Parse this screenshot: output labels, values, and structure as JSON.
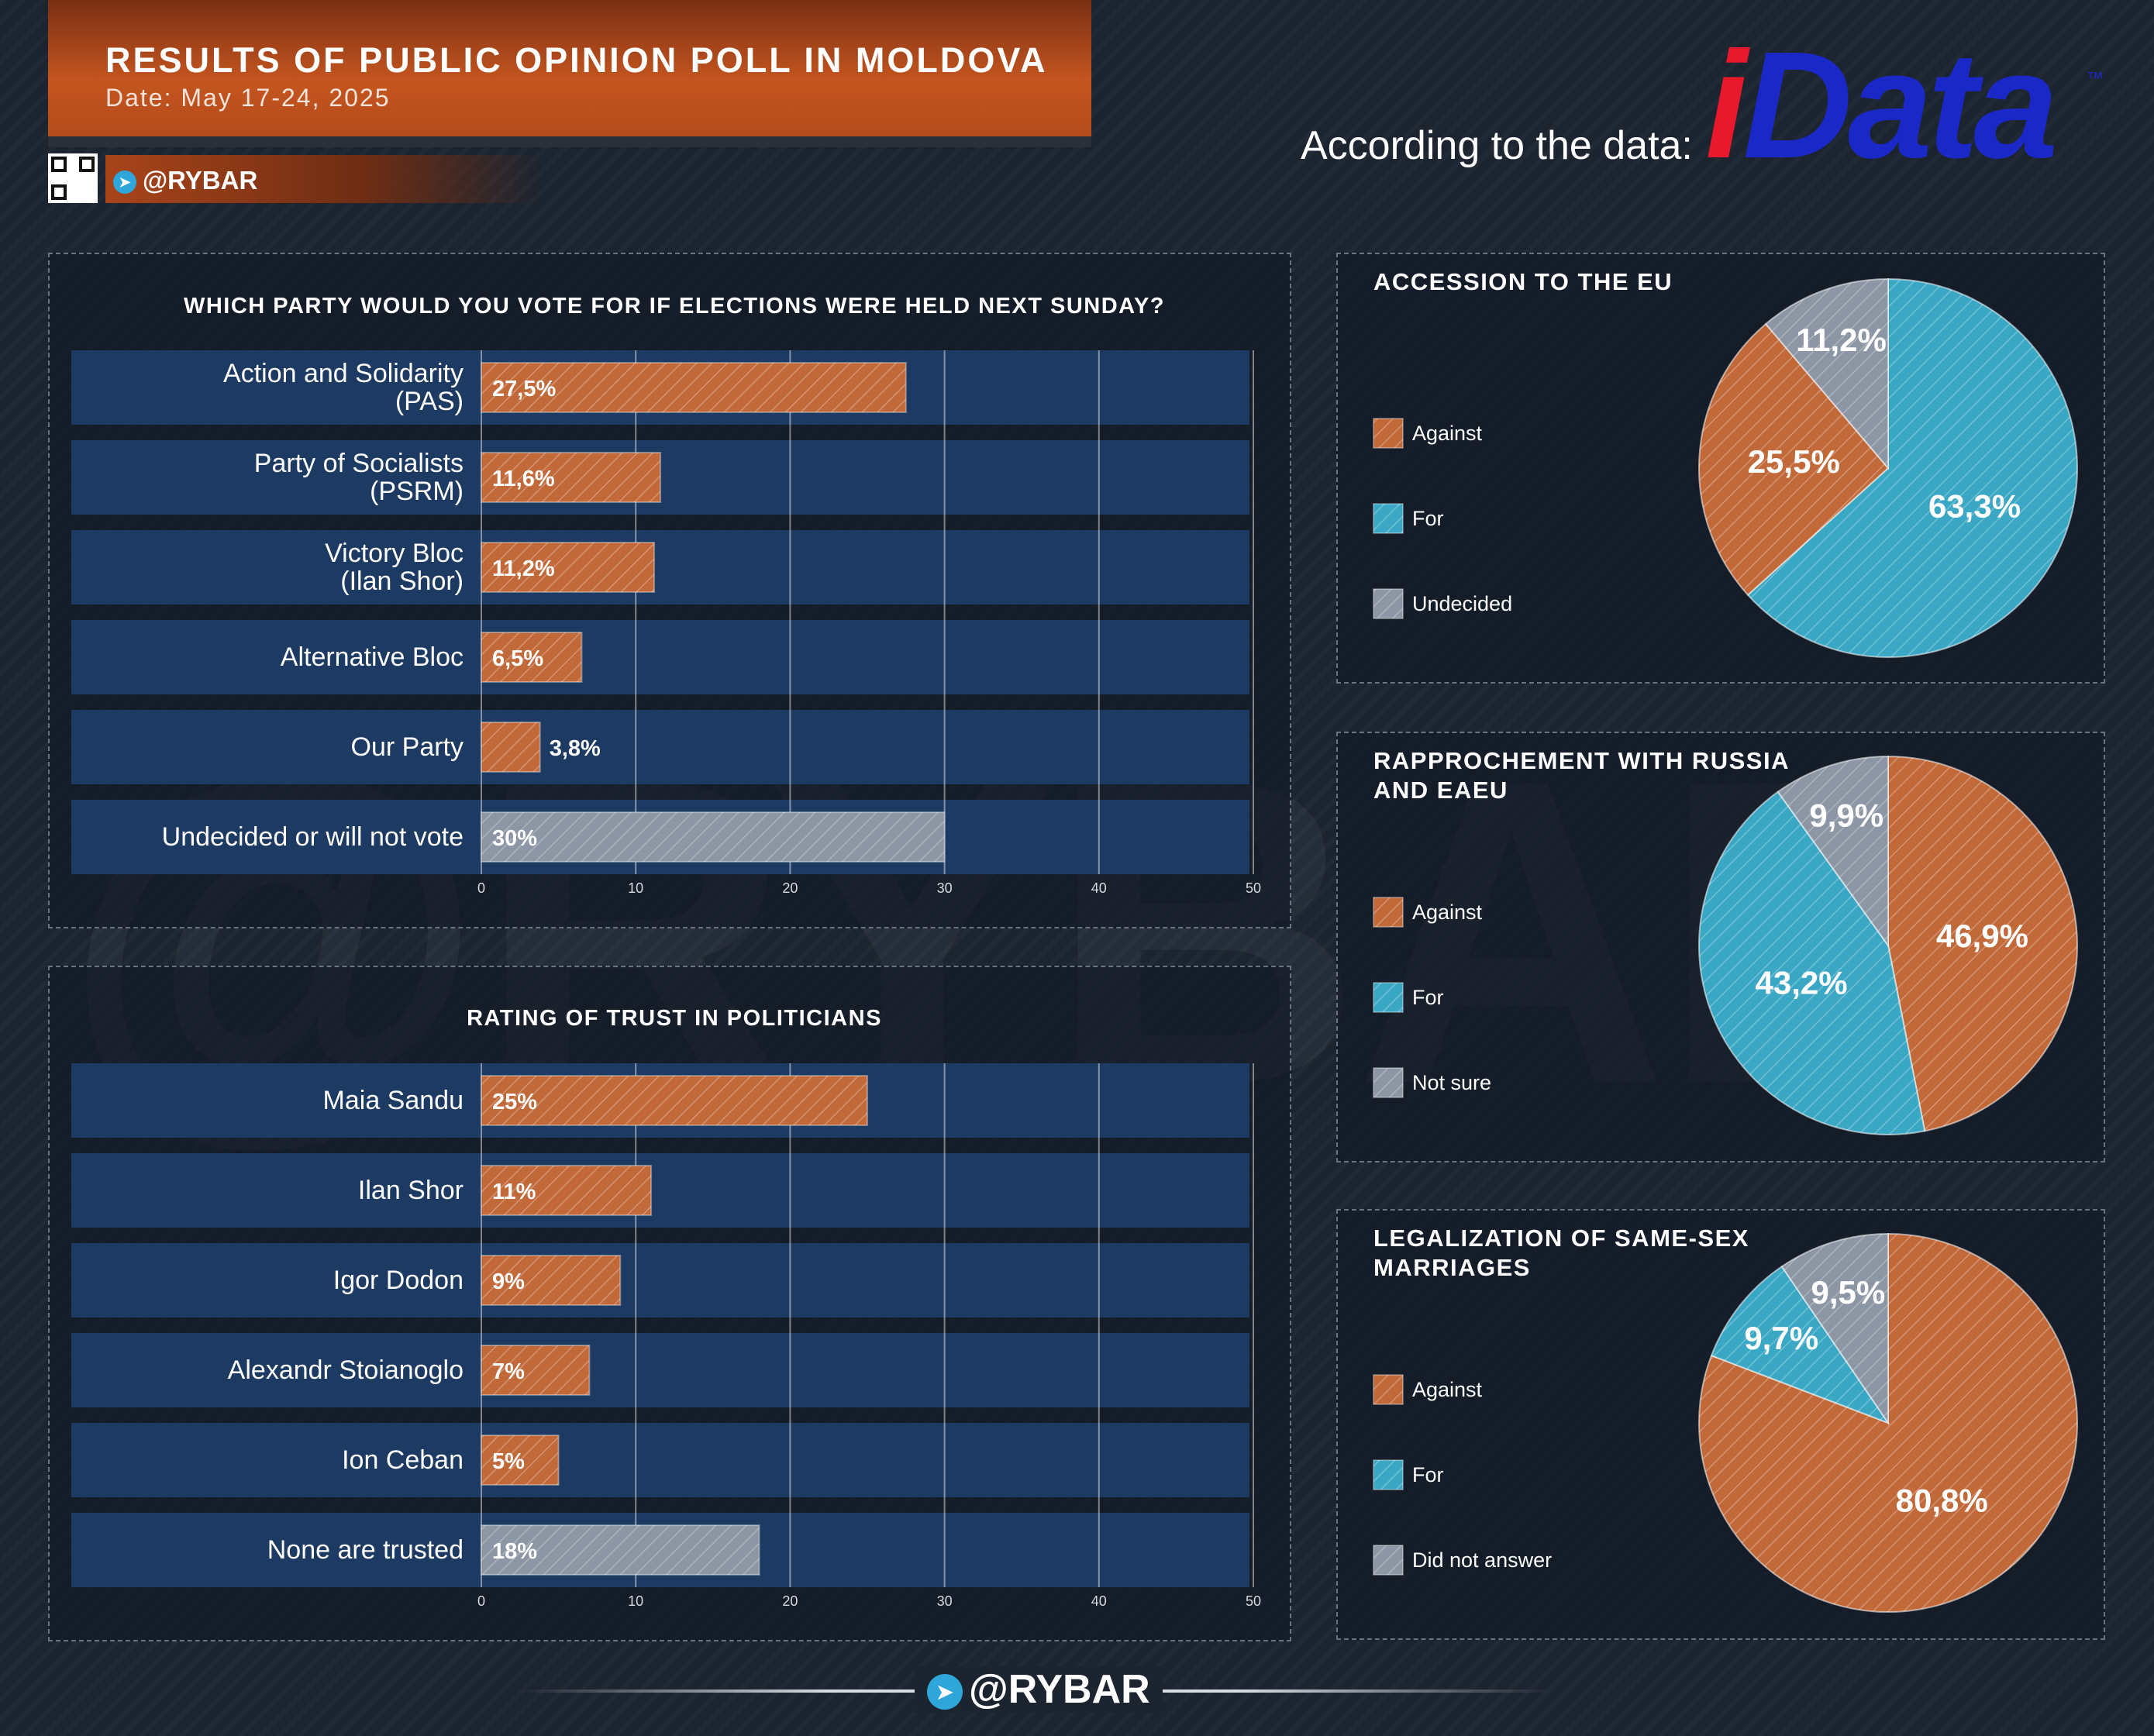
{
  "header": {
    "title": "RESULTS OF PUBLIC OPINION POLL IN MOLDOVA",
    "date": "Date: May 17-24, 2025",
    "handle": "@RYBAR"
  },
  "source": {
    "label": "According to the data:",
    "logo": "iData"
  },
  "watermark": "@RYBAR",
  "footer": {
    "handle": "@RYBAR"
  },
  "colors": {
    "orange": "#c2693a",
    "blue": "#3aa7c4",
    "gray": "#8d96a4",
    "bar_track": "#1d3a63"
  },
  "chart_data": [
    {
      "type": "bar",
      "orientation": "horizontal",
      "title": "WHICH PARTY WOULD YOU VOTE FOR IF ELECTIONS WERE HELD NEXT SUNDAY?",
      "categories": [
        "Action and Solidarity\n(PAS)",
        "Party of Socialists\n(PSRM)",
        "Victory Bloc\n(Ilan Shor)",
        "Alternative Bloc",
        "Our Party",
        "Undecided or will not vote"
      ],
      "values": [
        27.5,
        11.6,
        11.2,
        6.5,
        3.8,
        30
      ],
      "value_labels": [
        "27,5%",
        "11,6%",
        "11,2%",
        "6,5%",
        "3,8%",
        "30%"
      ],
      "colors": [
        "orange",
        "orange",
        "orange",
        "orange",
        "orange",
        "gray"
      ],
      "xlim": [
        0,
        50
      ],
      "xticks": [
        0,
        10,
        20,
        30,
        40,
        50
      ]
    },
    {
      "type": "bar",
      "orientation": "horizontal",
      "title": "RATING OF TRUST IN POLITICIANS",
      "categories": [
        "Maia Sandu",
        "Ilan Shor",
        "Igor Dodon",
        "Alexandr Stoianoglo",
        "Ion Ceban",
        "None are trusted"
      ],
      "values": [
        25,
        11,
        9,
        7,
        5,
        18
      ],
      "value_labels": [
        "25%",
        "11%",
        "9%",
        "7%",
        "5%",
        "18%"
      ],
      "colors": [
        "orange",
        "orange",
        "orange",
        "orange",
        "orange",
        "gray"
      ],
      "xlim": [
        0,
        50
      ],
      "xticks": [
        0,
        10,
        20,
        30,
        40,
        50
      ]
    },
    {
      "type": "pie",
      "title": "ACCESSION TO THE EU",
      "slices": [
        {
          "label": "For",
          "value": 63.3,
          "display": "63,3%",
          "color": "blue"
        },
        {
          "label": "Against",
          "value": 25.5,
          "display": "25,5%",
          "color": "orange"
        },
        {
          "label": "Undecided",
          "value": 11.2,
          "display": "11,2%",
          "color": "gray"
        }
      ],
      "legend": [
        "Against",
        "For",
        "Undecided"
      ]
    },
    {
      "type": "pie",
      "title": "RAPPROCHEMENT WITH RUSSIA\nAND EAEU",
      "slices": [
        {
          "label": "Against",
          "value": 46.9,
          "display": "46,9%",
          "color": "orange"
        },
        {
          "label": "For",
          "value": 43.2,
          "display": "43,2%",
          "color": "blue"
        },
        {
          "label": "Not sure",
          "value": 9.9,
          "display": "9,9%",
          "color": "gray"
        }
      ],
      "legend": [
        "Against",
        "For",
        "Not sure"
      ]
    },
    {
      "type": "pie",
      "title": "LEGALIZATION OF SAME-SEX\nMARRIAGES",
      "slices": [
        {
          "label": "Against",
          "value": 80.8,
          "display": "80,8%",
          "color": "orange"
        },
        {
          "label": "For",
          "value": 9.7,
          "display": "9,7%",
          "color": "blue"
        },
        {
          "label": "Did not answer",
          "value": 9.5,
          "display": "9,5%",
          "color": "gray"
        }
      ],
      "legend": [
        "Against",
        "For",
        "Did not answer"
      ]
    }
  ]
}
